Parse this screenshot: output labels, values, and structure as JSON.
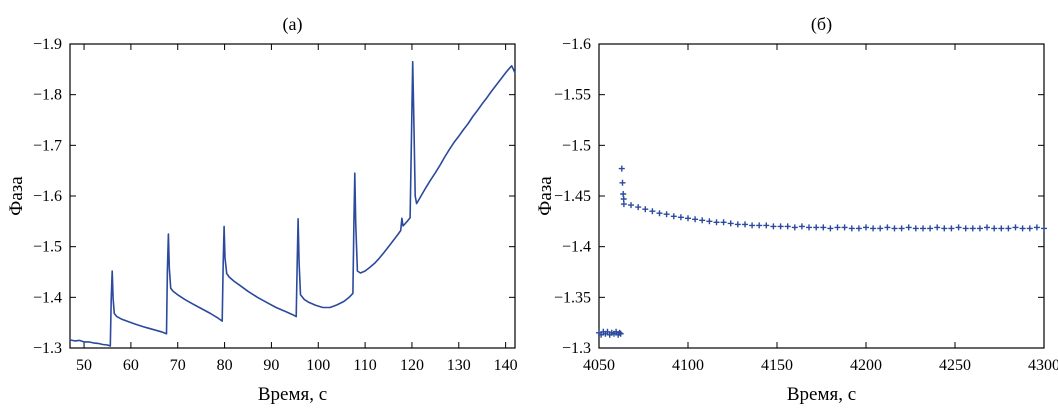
{
  "figure": {
    "background": "#ffffff",
    "accent_color": "#2b4a9d"
  },
  "chart_data": [
    {
      "id": "a",
      "type": "line",
      "title": "(а)",
      "xlabel": "Время, с",
      "ylabel": "Фаза",
      "x_range": [
        47,
        142
      ],
      "y_top": -1.9,
      "y_bottom": -1.3,
      "xticks": [
        50,
        60,
        70,
        80,
        90,
        100,
        110,
        120,
        130,
        140
      ],
      "yticks": [
        -1.9,
        -1.8,
        -1.7,
        -1.6,
        -1.5,
        -1.4,
        -1.3
      ],
      "grid": false,
      "legend": "none",
      "line_color": "#2b4a9d",
      "points": [
        [
          47.0,
          -1.316
        ],
        [
          48.0,
          -1.314
        ],
        [
          49.0,
          -1.315
        ],
        [
          50.0,
          -1.312
        ],
        [
          51.0,
          -1.312
        ],
        [
          52.0,
          -1.31
        ],
        [
          53.0,
          -1.309
        ],
        [
          54.0,
          -1.307
        ],
        [
          55.0,
          -1.306
        ],
        [
          55.6,
          -1.304
        ],
        [
          55.8,
          -1.395
        ],
        [
          56.0,
          -1.452
        ],
        [
          56.2,
          -1.398
        ],
        [
          56.45,
          -1.368
        ],
        [
          57.0,
          -1.362
        ],
        [
          58.0,
          -1.357
        ],
        [
          59.5,
          -1.352
        ],
        [
          61.0,
          -1.347
        ],
        [
          63.0,
          -1.341
        ],
        [
          65.0,
          -1.336
        ],
        [
          66.5,
          -1.332
        ],
        [
          67.6,
          -1.328
        ],
        [
          67.8,
          -1.455
        ],
        [
          68.0,
          -1.525
        ],
        [
          68.2,
          -1.458
        ],
        [
          68.5,
          -1.418
        ],
        [
          69.0,
          -1.412
        ],
        [
          70.0,
          -1.405
        ],
        [
          71.5,
          -1.396
        ],
        [
          73.0,
          -1.388
        ],
        [
          75.0,
          -1.378
        ],
        [
          77.0,
          -1.368
        ],
        [
          78.6,
          -1.359
        ],
        [
          79.5,
          -1.353
        ],
        [
          79.7,
          -1.468
        ],
        [
          79.9,
          -1.54
        ],
        [
          80.1,
          -1.478
        ],
        [
          80.45,
          -1.447
        ],
        [
          81.0,
          -1.44
        ],
        [
          82.0,
          -1.432
        ],
        [
          83.5,
          -1.422
        ],
        [
          85.0,
          -1.412
        ],
        [
          87.0,
          -1.4
        ],
        [
          89.0,
          -1.39
        ],
        [
          91.0,
          -1.38
        ],
        [
          93.0,
          -1.372
        ],
        [
          94.5,
          -1.366
        ],
        [
          95.3,
          -1.362
        ],
        [
          95.5,
          -1.468
        ],
        [
          95.7,
          -1.555
        ],
        [
          95.9,
          -1.468
        ],
        [
          96.2,
          -1.405
        ],
        [
          97.0,
          -1.396
        ],
        [
          98.0,
          -1.39
        ],
        [
          99.5,
          -1.384
        ],
        [
          101.0,
          -1.38
        ],
        [
          102.5,
          -1.38
        ],
        [
          104.0,
          -1.385
        ],
        [
          105.5,
          -1.392
        ],
        [
          106.6,
          -1.4
        ],
        [
          107.4,
          -1.408
        ],
        [
          107.6,
          -1.548
        ],
        [
          107.8,
          -1.645
        ],
        [
          108.0,
          -1.548
        ],
        [
          108.35,
          -1.452
        ],
        [
          109.0,
          -1.448
        ],
        [
          110.0,
          -1.452
        ],
        [
          111.0,
          -1.459
        ],
        [
          112.0,
          -1.467
        ],
        [
          113.0,
          -1.477
        ],
        [
          114.0,
          -1.488
        ],
        [
          115.0,
          -1.5
        ],
        [
          116.0,
          -1.512
        ],
        [
          117.0,
          -1.524
        ],
        [
          117.6,
          -1.532
        ],
        [
          117.85,
          -1.556
        ],
        [
          118.1,
          -1.541
        ],
        [
          118.6,
          -1.546
        ],
        [
          119.1,
          -1.551
        ],
        [
          119.6,
          -1.557
        ],
        [
          119.9,
          -1.72
        ],
        [
          120.15,
          -1.865
        ],
        [
          120.4,
          -1.755
        ],
        [
          120.7,
          -1.6
        ],
        [
          121.0,
          -1.585
        ],
        [
          122.0,
          -1.601
        ],
        [
          123.0,
          -1.617
        ],
        [
          124.0,
          -1.632
        ],
        [
          125.0,
          -1.646
        ],
        [
          126.0,
          -1.661
        ],
        [
          127.0,
          -1.677
        ],
        [
          128.0,
          -1.692
        ],
        [
          129.0,
          -1.706
        ],
        [
          130.0,
          -1.718
        ],
        [
          131.0,
          -1.731
        ],
        [
          132.0,
          -1.743
        ],
        [
          133.0,
          -1.757
        ],
        [
          134.0,
          -1.769
        ],
        [
          135.0,
          -1.782
        ],
        [
          136.0,
          -1.794
        ],
        [
          137.0,
          -1.807
        ],
        [
          138.0,
          -1.819
        ],
        [
          139.0,
          -1.831
        ],
        [
          140.0,
          -1.843
        ],
        [
          140.8,
          -1.852
        ],
        [
          141.3,
          -1.857
        ],
        [
          141.7,
          -1.849
        ],
        [
          142.0,
          -1.843
        ]
      ]
    },
    {
      "id": "b",
      "type": "scatter",
      "marker": "plus",
      "title": "(б)",
      "xlabel": "Время, с",
      "ylabel": "Фаза",
      "x_range": [
        4050,
        4300
      ],
      "y_top": -1.6,
      "y_bottom": -1.3,
      "xticks": [
        4050,
        4100,
        4150,
        4200,
        4250,
        4300
      ],
      "yticks": [
        -1.6,
        -1.55,
        -1.5,
        -1.45,
        -1.4,
        -1.35,
        -1.3
      ],
      "grid": false,
      "legend": "none",
      "marker_color": "#2b4a9d",
      "points": [
        [
          4050.0,
          -1.315
        ],
        [
          4051.2,
          -1.313
        ],
        [
          4052.4,
          -1.316
        ],
        [
          4053.6,
          -1.314
        ],
        [
          4054.8,
          -1.316
        ],
        [
          4056.0,
          -1.313
        ],
        [
          4057.2,
          -1.315
        ],
        [
          4058.4,
          -1.314
        ],
        [
          4059.6,
          -1.316
        ],
        [
          4060.8,
          -1.313
        ],
        [
          4061.6,
          -1.315
        ],
        [
          4062.2,
          -1.314
        ],
        [
          4062.8,
          -1.477
        ],
        [
          4063.2,
          -1.463
        ],
        [
          4063.6,
          -1.452
        ],
        [
          4063.9,
          -1.447
        ],
        [
          4064,
          -1.442
        ],
        [
          4068,
          -1.441
        ],
        [
          4072,
          -1.439
        ],
        [
          4076,
          -1.437
        ],
        [
          4080,
          -1.435
        ],
        [
          4084,
          -1.433
        ],
        [
          4088,
          -1.432
        ],
        [
          4092,
          -1.43
        ],
        [
          4096,
          -1.429
        ],
        [
          4100,
          -1.428
        ],
        [
          4104,
          -1.427
        ],
        [
          4108,
          -1.426
        ],
        [
          4112,
          -1.425
        ],
        [
          4116,
          -1.424
        ],
        [
          4120,
          -1.424
        ],
        [
          4124,
          -1.423
        ],
        [
          4128,
          -1.422
        ],
        [
          4132,
          -1.422
        ],
        [
          4136,
          -1.421
        ],
        [
          4140,
          -1.421
        ],
        [
          4144,
          -1.421
        ],
        [
          4148,
          -1.42
        ],
        [
          4152,
          -1.42
        ],
        [
          4156,
          -1.42
        ],
        [
          4160,
          -1.419
        ],
        [
          4164,
          -1.42
        ],
        [
          4168,
          -1.419
        ],
        [
          4172,
          -1.419
        ],
        [
          4176,
          -1.419
        ],
        [
          4180,
          -1.418
        ],
        [
          4184,
          -1.419
        ],
        [
          4188,
          -1.419
        ],
        [
          4192,
          -1.418
        ],
        [
          4196,
          -1.418
        ],
        [
          4200,
          -1.419
        ],
        [
          4204,
          -1.418
        ],
        [
          4208,
          -1.418
        ],
        [
          4212,
          -1.419
        ],
        [
          4216,
          -1.418
        ],
        [
          4220,
          -1.418
        ],
        [
          4224,
          -1.419
        ],
        [
          4228,
          -1.418
        ],
        [
          4232,
          -1.418
        ],
        [
          4236,
          -1.418
        ],
        [
          4240,
          -1.419
        ],
        [
          4244,
          -1.418
        ],
        [
          4248,
          -1.418
        ],
        [
          4252,
          -1.419
        ],
        [
          4256,
          -1.418
        ],
        [
          4260,
          -1.418
        ],
        [
          4264,
          -1.418
        ],
        [
          4268,
          -1.419
        ],
        [
          4272,
          -1.418
        ],
        [
          4276,
          -1.418
        ],
        [
          4280,
          -1.418
        ],
        [
          4284,
          -1.419
        ],
        [
          4288,
          -1.418
        ],
        [
          4292,
          -1.418
        ],
        [
          4296,
          -1.419
        ],
        [
          4300,
          -1.418
        ]
      ]
    }
  ]
}
